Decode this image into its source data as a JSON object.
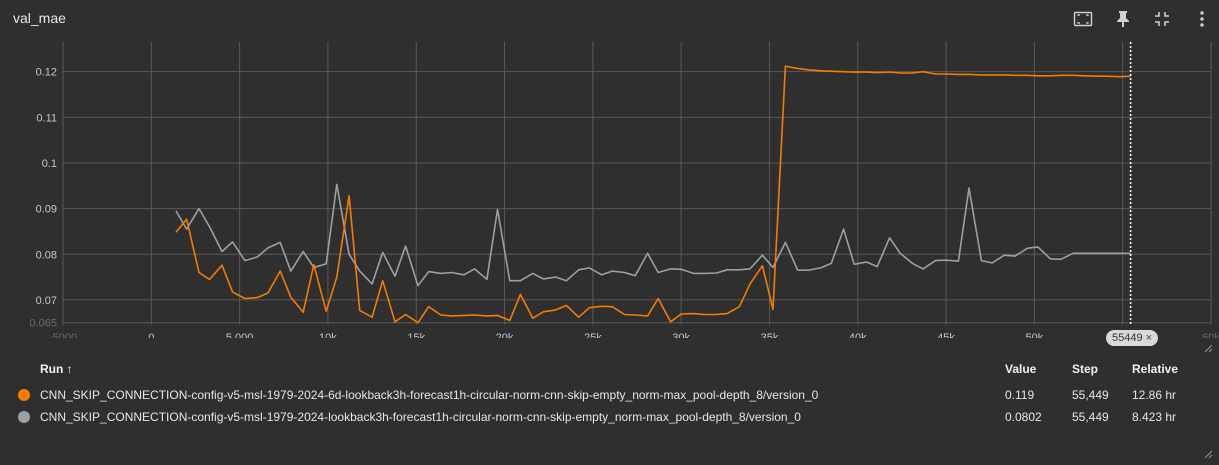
{
  "card": {
    "title": "val_mae"
  },
  "toolbar": {
    "icons": [
      "fit-domain-icon",
      "pin-icon",
      "collapse-icon",
      "more-vert-icon"
    ]
  },
  "hover": {
    "step_label": "55449",
    "close": "×"
  },
  "chart_data": {
    "type": "line",
    "title": "val_mae",
    "xlabel": "",
    "ylabel": "",
    "xlim": [
      -5000,
      60000
    ],
    "ylim": [
      0.0645,
      0.1265
    ],
    "x_ticks": [
      -5000,
      0,
      5000,
      10000,
      15000,
      20000,
      25000,
      30000,
      35000,
      40000,
      45000,
      50000,
      55000,
      60000
    ],
    "x_tick_labels": [
      "-5000",
      "0",
      "5,000",
      "10k",
      "15k",
      "20k",
      "25k",
      "30k",
      "35k",
      "40k",
      "45k",
      "50k",
      "55k",
      "60k"
    ],
    "y_ticks": [
      0.065,
      0.07,
      0.08,
      0.09,
      0.1,
      0.11,
      0.12
    ],
    "y_tick_labels": [
      "0.065",
      "0.07",
      "0.08",
      "0.09",
      "0.1",
      "0.11",
      "0.12"
    ],
    "grid": true,
    "hover_step": 55449,
    "series": [
      {
        "name": "CNN_SKIP_CONNECTION-config-v5-msl-1979-2024-6d-lookback3h-forecast1h-circular-norm-cnn-skip-empty_norm-max_pool-depth_8/version_0",
        "color": "#f57c00",
        "x": [
          1400,
          2000,
          2700,
          3300,
          4000,
          4600,
          5300,
          6000,
          6600,
          7300,
          7900,
          8600,
          9200,
          9900,
          10500,
          11200,
          11800,
          12500,
          13100,
          13800,
          14400,
          15100,
          15700,
          16400,
          17000,
          17700,
          18300,
          19000,
          19600,
          20300,
          20900,
          21600,
          22200,
          22900,
          23500,
          24200,
          24800,
          25500,
          26100,
          26800,
          27400,
          28100,
          28700,
          29400,
          30000,
          30700,
          31300,
          32000,
          32600,
          33300,
          33900,
          34600,
          35200,
          35900,
          36600,
          37200,
          37900,
          38500,
          39200,
          39800,
          40500,
          41100,
          41800,
          42400,
          43100,
          43700,
          44400,
          45000,
          45700,
          46300,
          47000,
          47600,
          48300,
          48900,
          49600,
          50200,
          50900,
          51500,
          52200,
          52800,
          53500,
          54100,
          54800,
          55449
        ],
        "values": [
          0.0848,
          0.0877,
          0.076,
          0.0745,
          0.0776,
          0.0717,
          0.0703,
          0.0705,
          0.0715,
          0.0763,
          0.0706,
          0.0673,
          0.0777,
          0.0675,
          0.075,
          0.0928,
          0.0677,
          0.0662,
          0.0742,
          0.0652,
          0.0668,
          0.065,
          0.0685,
          0.0667,
          0.0665,
          0.0666,
          0.0667,
          0.0665,
          0.0666,
          0.0655,
          0.0712,
          0.066,
          0.0674,
          0.0678,
          0.0688,
          0.0662,
          0.0683,
          0.0686,
          0.0685,
          0.0668,
          0.0667,
          0.0665,
          0.0703,
          0.0652,
          0.0669,
          0.067,
          0.0668,
          0.0668,
          0.067,
          0.0685,
          0.0735,
          0.0775,
          0.0679,
          0.1212,
          0.1207,
          0.1204,
          0.1202,
          0.1201,
          0.12,
          0.1199,
          0.1199,
          0.1198,
          0.1199,
          0.1197,
          0.1197,
          0.12,
          0.1195,
          0.1195,
          0.1194,
          0.1194,
          0.1193,
          0.1193,
          0.1193,
          0.1192,
          0.1192,
          0.1191,
          0.1191,
          0.1192,
          0.1192,
          0.1191,
          0.119,
          0.119,
          0.1189,
          0.119
        ]
      },
      {
        "name": "CNN_SKIP_CONNECTION-config-v5-msl-1979-2024-lookback3h-forecast1h-circular-norm-cnn-skip-empty_norm-max_pool-depth_8/version_0",
        "color": "#9aa0a6",
        "x": [
          1400,
          2000,
          2700,
          3300,
          4000,
          4600,
          5300,
          6000,
          6600,
          7300,
          7900,
          8600,
          9200,
          9900,
          10500,
          11200,
          11800,
          12500,
          13100,
          13800,
          14400,
          15100,
          15700,
          16400,
          17000,
          17700,
          18300,
          19000,
          19600,
          20300,
          20900,
          21600,
          22200,
          22900,
          23500,
          24200,
          24800,
          25500,
          26100,
          26800,
          27400,
          28100,
          28700,
          29400,
          30000,
          30700,
          31300,
          32000,
          32600,
          33300,
          33900,
          34600,
          35200,
          35900,
          36600,
          37200,
          37900,
          38500,
          39200,
          39800,
          40500,
          41100,
          41800,
          42400,
          43100,
          43700,
          44400,
          45000,
          45700,
          46300,
          47000,
          47600,
          48300,
          48900,
          49600,
          50200,
          50900,
          51500,
          52200,
          52800,
          53500,
          54100,
          54800,
          55449
        ],
        "values": [
          0.0895,
          0.0855,
          0.09,
          0.086,
          0.0806,
          0.0827,
          0.0786,
          0.0794,
          0.0814,
          0.0826,
          0.0763,
          0.0806,
          0.0771,
          0.0779,
          0.0953,
          0.08,
          0.0763,
          0.0735,
          0.0804,
          0.0752,
          0.0818,
          0.0731,
          0.0762,
          0.0758,
          0.076,
          0.0755,
          0.0768,
          0.0745,
          0.0898,
          0.0742,
          0.0742,
          0.0758,
          0.0746,
          0.075,
          0.0742,
          0.0766,
          0.077,
          0.0755,
          0.0763,
          0.076,
          0.0753,
          0.0802,
          0.076,
          0.0768,
          0.0767,
          0.0758,
          0.0758,
          0.0759,
          0.0766,
          0.0766,
          0.0768,
          0.0798,
          0.0771,
          0.0826,
          0.0765,
          0.0765,
          0.077,
          0.078,
          0.0855,
          0.0778,
          0.0783,
          0.0773,
          0.0836,
          0.0802,
          0.078,
          0.0768,
          0.0786,
          0.0787,
          0.0785,
          0.0945,
          0.0786,
          0.0781,
          0.0798,
          0.0796,
          0.0813,
          0.0816,
          0.079,
          0.0789,
          0.0802,
          0.0802,
          0.0802,
          0.0802,
          0.0802,
          0.0802
        ]
      }
    ]
  },
  "table": {
    "headers": {
      "run": "Run ↑",
      "value": "Value",
      "step": "Step",
      "relative": "Relative"
    },
    "rows": [
      {
        "color": "#f57c00",
        "run": "CNN_SKIP_CONNECTION-config-v5-msl-1979-2024-6d-lookback3h-forecast1h-circular-norm-cnn-skip-empty_norm-max_pool-depth_8/version_0",
        "value": "0.119",
        "step": "55,449",
        "relative": "12.86 hr"
      },
      {
        "color": "#9aa0a6",
        "run": "CNN_SKIP_CONNECTION-config-v5-msl-1979-2024-lookback3h-forecast1h-circular-norm-cnn-skip-empty_norm-max_pool-depth_8/version_0",
        "value": "0.0802",
        "step": "55,449",
        "relative": "8.423 hr"
      }
    ]
  }
}
